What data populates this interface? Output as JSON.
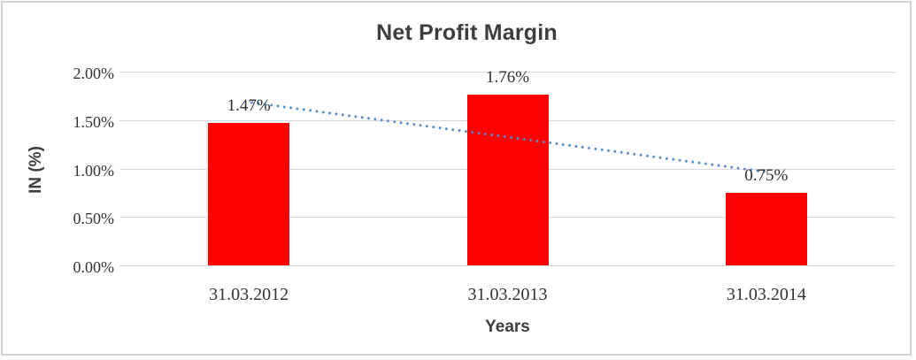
{
  "chart_data": {
    "type": "bar",
    "title": "Net Profit Margin",
    "xlabel": "Years",
    "ylabel": "IN (%)",
    "categories": [
      "31.03.2012",
      "31.03.2013",
      "31.03.2014"
    ],
    "series": [
      {
        "name": "Net Profit Margin",
        "values": [
          1.47,
          1.76,
          0.75
        ],
        "data_labels": [
          "1.47%",
          "1.76%",
          "0.75%"
        ],
        "color": "#ff0000"
      }
    ],
    "ylim": [
      0,
      2.0
    ],
    "ytick_step": 0.5,
    "ytick_labels": [
      "0.00%",
      "0.50%",
      "1.00%",
      "1.50%",
      "2.00%"
    ],
    "grid": true,
    "gridline_color": "#d9d9d9",
    "legend": "none",
    "trendline": {
      "type": "linear",
      "style": "dotted",
      "color": "#4f8bc9",
      "start_value": 1.687,
      "end_value": 0.967
    }
  }
}
